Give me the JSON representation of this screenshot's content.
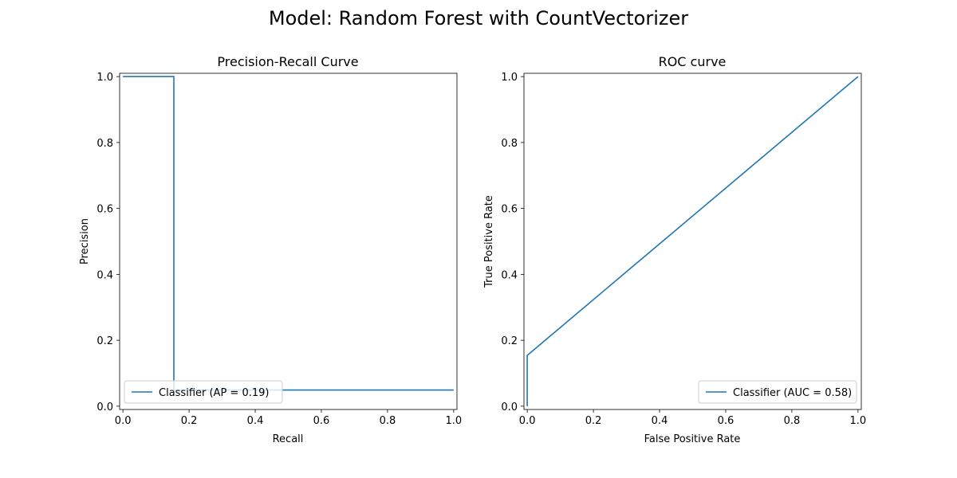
{
  "figure": {
    "suptitle": "Model: Random Forest with CountVectorizer"
  },
  "chart_data": [
    {
      "type": "line",
      "title": "Precision-Recall Curve",
      "xlabel": "Recall",
      "ylabel": "Precision",
      "xlim": [
        -0.01,
        1.01
      ],
      "ylim": [
        -0.01,
        1.01
      ],
      "xticks": [
        "0.0",
        "0.2",
        "0.4",
        "0.6",
        "0.8",
        "1.0"
      ],
      "yticks": [
        "0.0",
        "0.2",
        "0.4",
        "0.6",
        "0.8",
        "1.0"
      ],
      "grid": false,
      "legend_position": "lower-left",
      "series": [
        {
          "name": "Classifier (AP = 0.19)",
          "color": "#1f77b4",
          "x": [
            0.0,
            0.154,
            0.154,
            1.0
          ],
          "y": [
            1.0,
            1.0,
            0.049,
            0.049
          ]
        }
      ]
    },
    {
      "type": "line",
      "title": "ROC curve",
      "xlabel": "False Positive Rate",
      "ylabel": "True Positive Rate",
      "xlim": [
        -0.01,
        1.01
      ],
      "ylim": [
        -0.01,
        1.01
      ],
      "xticks": [
        "0.0",
        "0.2",
        "0.4",
        "0.6",
        "0.8",
        "1.0"
      ],
      "yticks": [
        "0.0",
        "0.2",
        "0.4",
        "0.6",
        "0.8",
        "1.0"
      ],
      "grid": false,
      "legend_position": "lower-right",
      "series": [
        {
          "name": "Classifier (AUC = 0.58)",
          "color": "#1f77b4",
          "x": [
            0.0,
            0.0,
            1.0
          ],
          "y": [
            0.0,
            0.154,
            1.0
          ]
        }
      ]
    }
  ]
}
